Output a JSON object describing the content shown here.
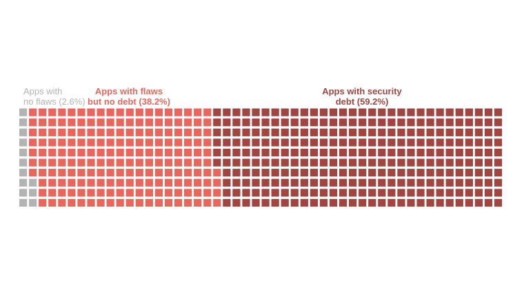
{
  "chart_data": {
    "type": "waffle",
    "rows": 10,
    "columns": 50,
    "fill_order": "column-major, bottom to top",
    "categories": [
      {
        "name_line1": "Apps with",
        "name_line2": "no flaws (2.6%)",
        "percent": 2.6,
        "cells": 13,
        "color": "#b3b3b3"
      },
      {
        "name_line1": "Apps with flaws",
        "name_line2": "but no debt (38.2%)",
        "percent": 38.2,
        "cells": 191,
        "color": "#e8675c"
      },
      {
        "name_line1": "Apps with security",
        "name_line2": "debt (59.2%)",
        "percent": 59.2,
        "cells": 296,
        "color": "#a04540"
      }
    ]
  }
}
